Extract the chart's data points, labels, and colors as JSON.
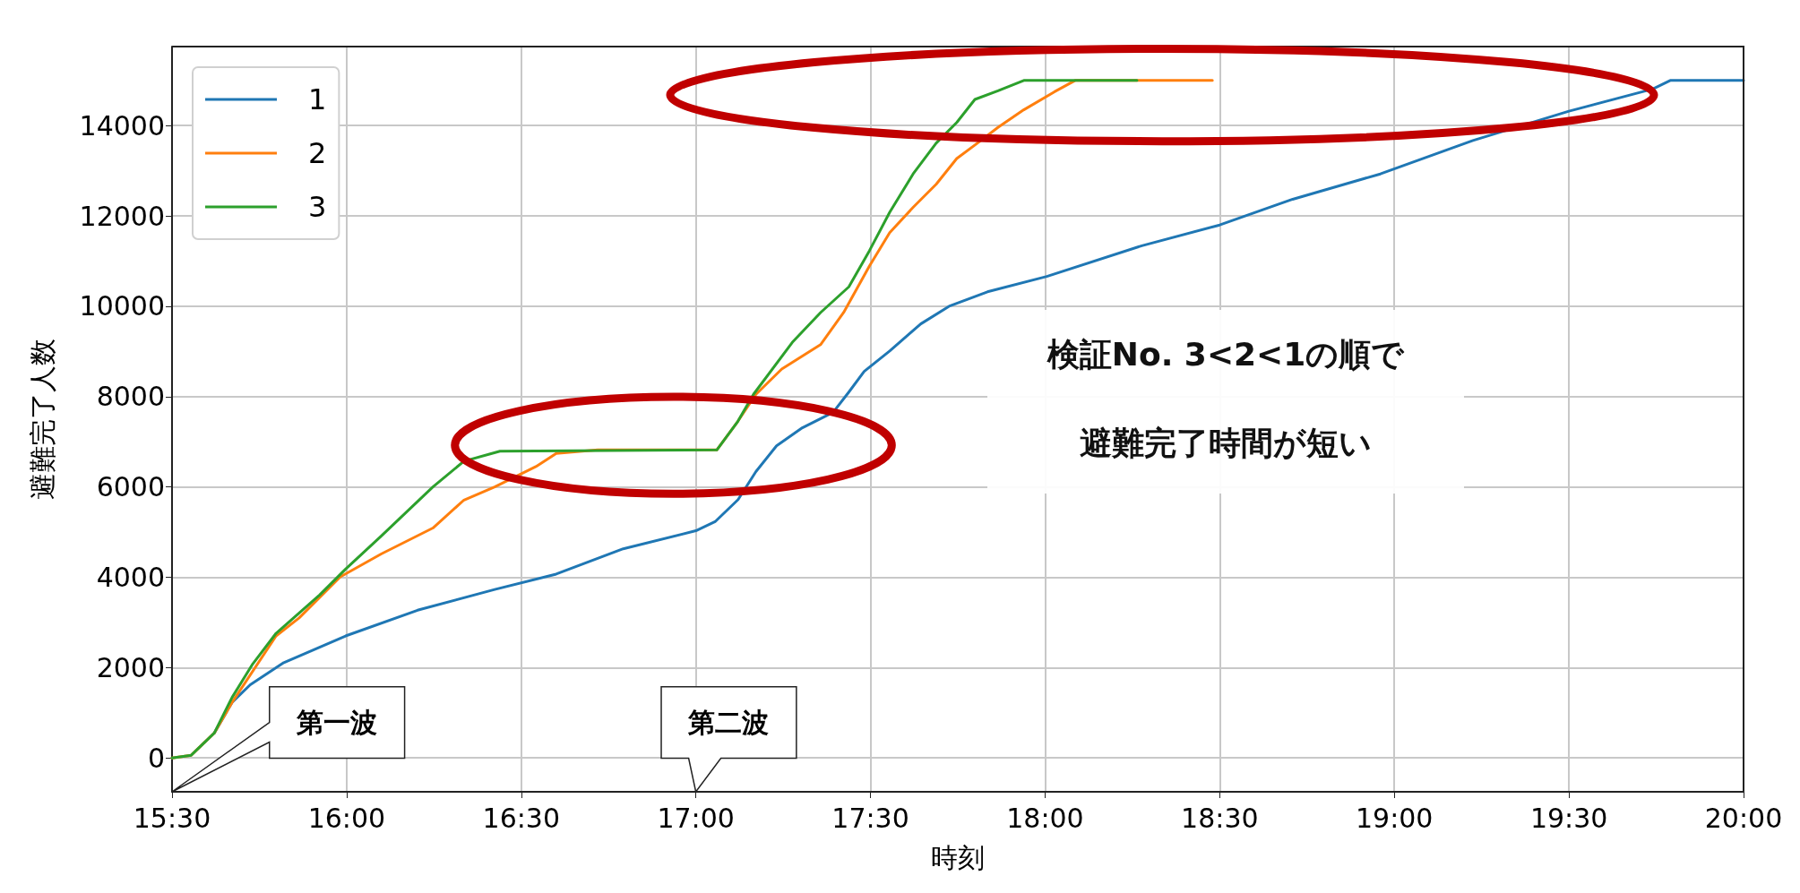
{
  "chart_data": {
    "type": "line",
    "xlabel": "時刻",
    "ylabel": "避難完了人数",
    "xlim": [
      15.5,
      20
    ],
    "xticks": [
      {
        "value": 15.5,
        "label": "15:30"
      },
      {
        "value": 16,
        "label": "16:00"
      },
      {
        "value": 16.5,
        "label": "16:30"
      },
      {
        "value": 17,
        "label": "17:00"
      },
      {
        "value": 17.5,
        "label": "17:30"
      },
      {
        "value": 18,
        "label": "18:00"
      },
      {
        "value": 18.5,
        "label": "18:30"
      },
      {
        "value": 19,
        "label": "19:00"
      },
      {
        "value": 19.5,
        "label": "19:30"
      },
      {
        "value": 20,
        "label": "20:00"
      }
    ],
    "ylim": [
      -750,
      15750
    ],
    "yticks": [
      0,
      2000,
      4000,
      6000,
      8000,
      10000,
      12000,
      14000
    ],
    "grid": true,
    "legend": "top left",
    "marker": "none",
    "line_style": "solid",
    "series": [
      {
        "name": "1",
        "color": "#1f77b4",
        "x": [
          15.621,
          15.672,
          15.724,
          15.82,
          15.997,
          16.203,
          16.424,
          16.6,
          16.792,
          17.0,
          17.055,
          17.121,
          17.172,
          17.231,
          17.305,
          17.393,
          17.438,
          17.482,
          17.555,
          17.644,
          17.725,
          17.835,
          18.005,
          18.277,
          18.5,
          18.709,
          18.96,
          19.225,
          19.5,
          19.74,
          19.79,
          20.0
        ],
        "values": [
          550,
          1230,
          1620,
          2110,
          2700,
          3270,
          3730,
          4070,
          4630,
          5030,
          5230,
          5720,
          6340,
          6910,
          7310,
          7650,
          8100,
          8560,
          9010,
          9610,
          10000,
          10320,
          10660,
          11340,
          11800,
          12370,
          12930,
          13670,
          14320,
          14810,
          15000,
          15000
        ]
      },
      {
        "name": "2",
        "color": "#ff7f0e",
        "x": [
          15.5,
          15.555,
          15.621,
          15.672,
          15.798,
          15.864,
          15.982,
          16.1,
          16.247,
          16.336,
          16.424,
          16.542,
          16.6,
          16.719,
          17.06,
          17.12,
          17.172,
          17.246,
          17.357,
          17.423,
          17.497,
          17.555,
          17.622,
          17.688,
          17.747,
          17.806,
          17.865,
          17.939,
          18.027,
          18.086,
          18.479
        ],
        "values": [
          0,
          60,
          550,
          1230,
          2700,
          3100,
          4010,
          4520,
          5090,
          5710,
          6000,
          6450,
          6740,
          6820,
          6820,
          7450,
          8050,
          8610,
          9150,
          9860,
          10890,
          11630,
          12190,
          12700,
          13270,
          13610,
          13960,
          14350,
          14750,
          15000,
          15000
        ]
      },
      {
        "name": "3",
        "color": "#2ca02c",
        "x": [
          15.5,
          15.555,
          15.621,
          15.672,
          15.731,
          15.798,
          15.923,
          15.997,
          16.1,
          16.247,
          16.336,
          16.439,
          17.06,
          17.12,
          17.165,
          17.276,
          17.357,
          17.438,
          17.497,
          17.555,
          17.622,
          17.688,
          17.747,
          17.799,
          17.865,
          17.939,
          18.263
        ],
        "values": [
          0,
          60,
          550,
          1340,
          2080,
          2760,
          3610,
          4180,
          4920,
          6000,
          6570,
          6790,
          6820,
          7450,
          8050,
          9200,
          9860,
          10430,
          11230,
          12080,
          12930,
          13610,
          14070,
          14580,
          14770,
          15000,
          15000
        ]
      }
    ],
    "annotations": [
      "第一波",
      "第二波",
      "検証No. 3<2<1の順で",
      "避難完了時間が短い"
    ]
  }
}
